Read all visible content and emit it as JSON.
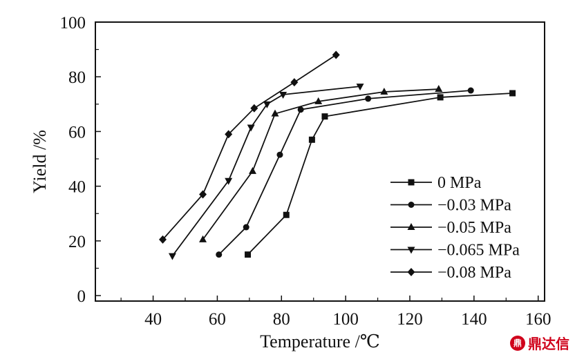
{
  "chart_data": {
    "type": "line",
    "title": "",
    "xlabel": "Temperature /℃",
    "ylabel": "Yield /%",
    "xlim": [
      22,
      162
    ],
    "ylim": [
      -2,
      100
    ],
    "xticks": [
      40,
      60,
      80,
      100,
      120,
      140,
      160
    ],
    "yticks": [
      0,
      20,
      40,
      60,
      80,
      100
    ],
    "grid": false,
    "legend_position": "right",
    "colors": {
      "line": "#111111",
      "axis": "#111111"
    },
    "series": [
      {
        "name": "0 MPa",
        "marker": "square",
        "x": [
          69.5,
          81.5,
          89.5,
          93.5,
          129.5,
          152
        ],
        "y": [
          15,
          29.5,
          57,
          65.5,
          72.5,
          74
        ]
      },
      {
        "name": "−0.03 MPa",
        "marker": "circle",
        "x": [
          60.5,
          69,
          79.5,
          86,
          107,
          139
        ],
        "y": [
          15,
          25,
          51.5,
          68,
          72,
          75
        ]
      },
      {
        "name": "−0.05 MPa",
        "marker": "triangle-up",
        "x": [
          55.5,
          71,
          78,
          91.5,
          112,
          129
        ],
        "y": [
          20.5,
          45.5,
          66.5,
          71,
          74.5,
          75.5
        ]
      },
      {
        "name": "−0.065 MPa",
        "marker": "triangle-down",
        "x": [
          46,
          63.5,
          70.5,
          75.5,
          80.5,
          104.5
        ],
        "y": [
          14.5,
          42,
          61.5,
          70,
          73.5,
          76.5
        ]
      },
      {
        "name": "−0.08 MPa",
        "marker": "diamond",
        "x": [
          43,
          55.5,
          63.5,
          71.5,
          84,
          97
        ],
        "y": [
          20.5,
          37,
          59,
          68.5,
          78,
          88
        ]
      }
    ]
  },
  "watermark": {
    "logo_text": "鼎",
    "text": "鼎达信"
  }
}
